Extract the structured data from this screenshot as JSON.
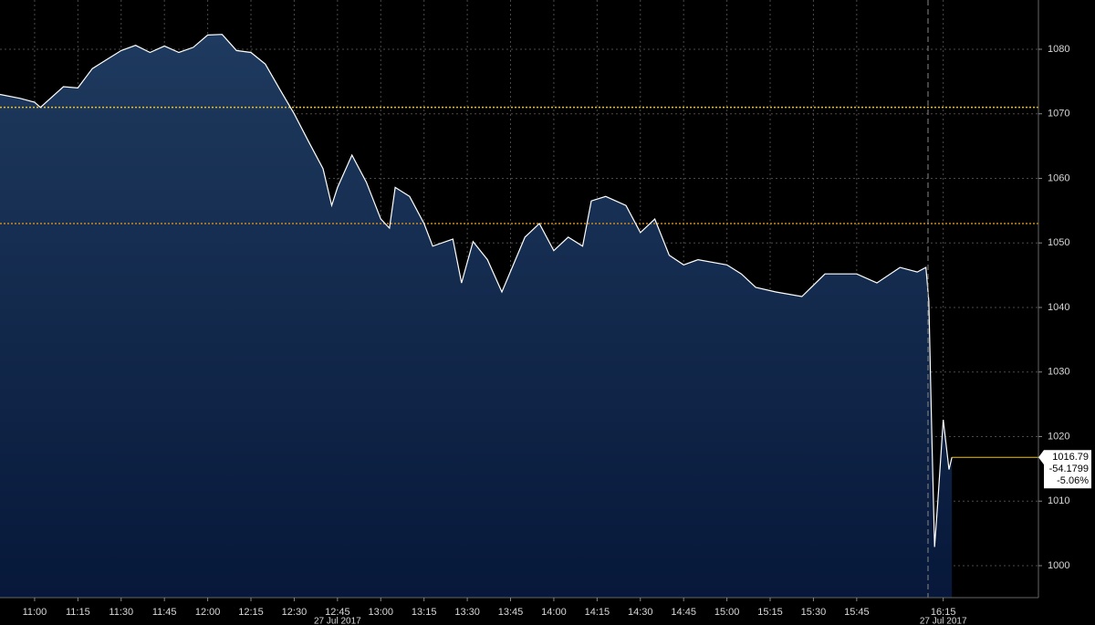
{
  "chart_data": {
    "type": "area",
    "x": [
      "10:48",
      "10:55",
      "11:00",
      "11:02",
      "11:10",
      "11:15",
      "11:20",
      "11:25",
      "11:30",
      "11:35",
      "11:40",
      "11:45",
      "11:50",
      "11:55",
      "12:00",
      "12:05",
      "12:10",
      "12:15",
      "12:20",
      "12:25",
      "12:30",
      "12:35",
      "12:40",
      "12:43",
      "12:45",
      "12:50",
      "12:55",
      "13:00",
      "13:03",
      "13:05",
      "13:10",
      "13:15",
      "13:18",
      "13:25",
      "13:28",
      "13:32",
      "13:37",
      "13:42",
      "13:50",
      "13:55",
      "14:00",
      "14:05",
      "14:10",
      "14:13",
      "14:18",
      "14:25",
      "14:30",
      "14:35",
      "14:40",
      "14:45",
      "14:50",
      "15:00",
      "15:05",
      "15:10",
      "15:17",
      "15:26",
      "15:34",
      "15:45",
      "15:52",
      "16:00",
      "16:06",
      "16:09",
      "16:10",
      "16:11",
      "16:12",
      "16:13",
      "16:15",
      "16:17",
      "16:18"
    ],
    "values": [
      1073.0,
      1072.4,
      1071.8,
      1071.0,
      1074.2,
      1074.0,
      1077.0,
      1078.4,
      1079.8,
      1080.6,
      1079.5,
      1080.5,
      1079.5,
      1080.3,
      1082.2,
      1082.3,
      1079.8,
      1079.5,
      1077.7,
      1073.8,
      1070.0,
      1065.7,
      1061.5,
      1055.8,
      1058.6,
      1063.6,
      1059.4,
      1053.7,
      1052.3,
      1058.6,
      1057.2,
      1053.0,
      1049.5,
      1050.6,
      1043.8,
      1050.2,
      1047.4,
      1042.4,
      1050.9,
      1053.0,
      1048.8,
      1050.9,
      1049.5,
      1056.5,
      1057.2,
      1055.8,
      1051.6,
      1053.7,
      1048.1,
      1046.6,
      1047.4,
      1046.6,
      1045.2,
      1043.1,
      1042.4,
      1041.7,
      1045.2,
      1045.2,
      1043.8,
      1046.2,
      1045.5,
      1046.2,
      1041.0,
      1021.2,
      1002.9,
      1009.2,
      1022.6,
      1014.9,
      1016.79
    ],
    "color": "#ffffff",
    "xlim": [
      "10:48",
      "16:48"
    ],
    "xticks": [
      "11:00",
      "11:15",
      "11:30",
      "11:45",
      "12:00",
      "12:15",
      "12:30",
      "12:45",
      "13:00",
      "13:15",
      "13:30",
      "13:45",
      "14:00",
      "14:15",
      "14:30",
      "14:45",
      "15:00",
      "15:15",
      "15:30",
      "15:45",
      "16:15"
    ],
    "ylim": [
      995.05,
      1087.63
    ],
    "yticks": [
      1000,
      1010,
      1020,
      1030,
      1040,
      1050,
      1060,
      1070,
      1080
    ],
    "grid": true,
    "reference_lines": [
      {
        "value": 1071,
        "color": "#e8c02a"
      },
      {
        "value": 1053,
        "color": "#c98a1f"
      }
    ],
    "date_labels": [
      "27 Jul 2017",
      "27 Jul 2017"
    ],
    "last_label": {
      "value": 1016.79,
      "change": -54.1799,
      "change_pct": {
        "value": -5.06,
        "label": "-5.06%"
      }
    }
  }
}
